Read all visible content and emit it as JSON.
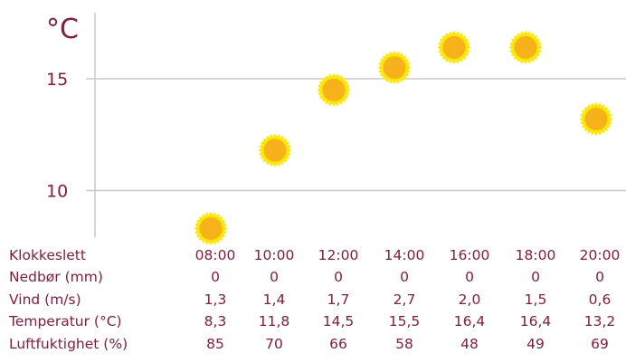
{
  "chart_data": {
    "type": "scatter",
    "unit_label": "°C",
    "y_ticks": [
      "15",
      "10"
    ],
    "y_tick_values": [
      15,
      10
    ],
    "ylim": [
      7.3,
      18.6
    ],
    "grid": true,
    "marker": "sun-icon",
    "x": [
      "08:00",
      "10:00",
      "12:00",
      "14:00",
      "16:00",
      "18:00",
      "20:00"
    ],
    "values": [
      8.3,
      11.8,
      14.5,
      15.5,
      16.4,
      16.4,
      13.2
    ]
  },
  "colors": {
    "text": "#8b1a3c",
    "axis": "#c8c8c8",
    "sun_core": "#f7b11a",
    "sun_ring": "#fde800"
  },
  "table": {
    "rows": [
      {
        "label": "Klokkeslett",
        "values": [
          "08:00",
          "10:00",
          "12:00",
          "14:00",
          "16:00",
          "18:00",
          "20:00"
        ]
      },
      {
        "label": "Nedbør (mm)",
        "values": [
          "0",
          "0",
          "0",
          "0",
          "0",
          "0",
          "0"
        ]
      },
      {
        "label": "Vind (m/s)",
        "values": [
          "1,3",
          "1,4",
          "1,7",
          "2,7",
          "2,0",
          "1,5",
          "0,6"
        ]
      },
      {
        "label": "Temperatur (°C)",
        "values": [
          "8,3",
          "11,8",
          "14,5",
          "15,5",
          "16,4",
          "16,4",
          "13,2"
        ]
      },
      {
        "label": "Luftfuktighet (%)",
        "values": [
          "85",
          "70",
          "66",
          "58",
          "48",
          "49",
          "69"
        ]
      }
    ]
  }
}
